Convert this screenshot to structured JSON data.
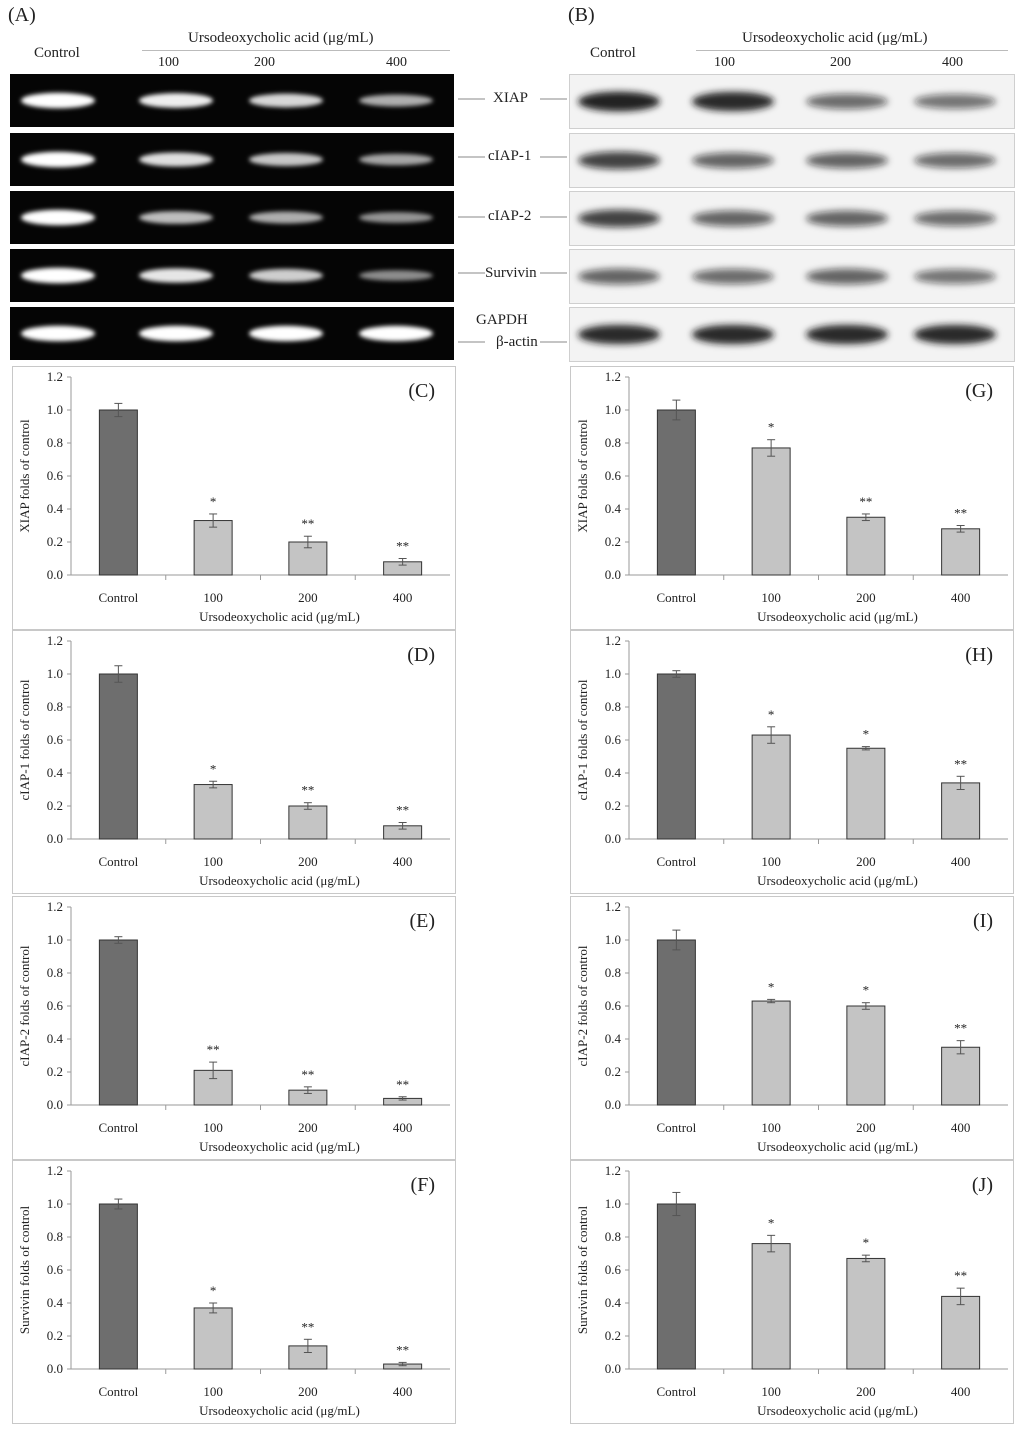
{
  "blots": {
    "A": {
      "letter": "(A)",
      "control_label": "Control",
      "treatment_header": "Ursodeoxycholic acid (μg/mL)",
      "lanes": [
        "100",
        "200",
        "400"
      ],
      "bands": [
        "XIAP",
        "cIAP-1",
        "cIAP-2",
        "Survivin",
        "GAPDH"
      ]
    },
    "B": {
      "letter": "(B)",
      "control_label": "Control",
      "treatment_header": "Ursodeoxycholic acid (μg/mL)",
      "lanes": [
        "100",
        "200",
        "400"
      ],
      "bands": [
        "XIAP",
        "cIAP-1",
        "cIAP-2",
        "Survivin",
        "β-actin"
      ]
    }
  },
  "chart_data": [
    {
      "type": "bar",
      "panel": "(C)",
      "categories": [
        "Control",
        "100",
        "200",
        "400"
      ],
      "values": [
        1.0,
        0.33,
        0.2,
        0.08
      ],
      "errors": [
        0.04,
        0.04,
        0.035,
        0.02
      ],
      "sig": [
        "",
        "*",
        "**",
        "**"
      ],
      "xlabel": "Ursodeoxycholic acid (μg/mL)",
      "ylabel": "XIAP folds of control",
      "ylim": [
        0,
        1.2
      ],
      "yticks": [
        "0.0",
        "0.2",
        "0.4",
        "0.6",
        "0.8",
        "1.0",
        "1.2"
      ]
    },
    {
      "type": "bar",
      "panel": "(G)",
      "categories": [
        "Control",
        "100",
        "200",
        "400"
      ],
      "values": [
        1.0,
        0.77,
        0.35,
        0.28
      ],
      "errors": [
        0.06,
        0.05,
        0.02,
        0.02
      ],
      "sig": [
        "",
        "*",
        "**",
        "**"
      ],
      "xlabel": "Ursodeoxycholic acid (μg/mL)",
      "ylabel": "XIAP folds of control",
      "ylim": [
        0,
        1.2
      ],
      "yticks": [
        "0.0",
        "0.2",
        "0.4",
        "0.6",
        "0.8",
        "1.0",
        "1.2"
      ]
    },
    {
      "type": "bar",
      "panel": "(D)",
      "categories": [
        "Control",
        "100",
        "200",
        "400"
      ],
      "values": [
        1.0,
        0.33,
        0.2,
        0.08
      ],
      "errors": [
        0.05,
        0.02,
        0.02,
        0.02
      ],
      "sig": [
        "",
        "*",
        "**",
        "**"
      ],
      "xlabel": "Ursodeoxycholic acid (μg/mL)",
      "ylabel": "cIAP-1 folds of control",
      "ylim": [
        0,
        1.2
      ],
      "yticks": [
        "0.0",
        "0.2",
        "0.4",
        "0.6",
        "0.8",
        "1.0",
        "1.2"
      ]
    },
    {
      "type": "bar",
      "panel": "(H)",
      "categories": [
        "Control",
        "100",
        "200",
        "400"
      ],
      "values": [
        1.0,
        0.63,
        0.55,
        0.34
      ],
      "errors": [
        0.02,
        0.05,
        0.01,
        0.04
      ],
      "sig": [
        "",
        "*",
        "*",
        "**"
      ],
      "xlabel": "Ursodeoxycholic acid (μg/mL)",
      "ylabel": "cIAP-1 folds of control",
      "ylim": [
        0,
        1.2
      ],
      "yticks": [
        "0.0",
        "0.2",
        "0.4",
        "0.6",
        "0.8",
        "1.0",
        "1.2"
      ]
    },
    {
      "type": "bar",
      "panel": "(E)",
      "categories": [
        "Control",
        "100",
        "200",
        "400"
      ],
      "values": [
        1.0,
        0.21,
        0.09,
        0.04
      ],
      "errors": [
        0.02,
        0.05,
        0.02,
        0.01
      ],
      "sig": [
        "",
        "**",
        "**",
        "**"
      ],
      "xlabel": "Ursodeoxycholic acid (μg/mL)",
      "ylabel": "cIAP-2 folds of control",
      "ylim": [
        0,
        1.2
      ],
      "yticks": [
        "0.0",
        "0.2",
        "0.4",
        "0.6",
        "0.8",
        "1.0",
        "1.2"
      ]
    },
    {
      "type": "bar",
      "panel": "(I)",
      "categories": [
        "Control",
        "100",
        "200",
        "400"
      ],
      "values": [
        1.0,
        0.63,
        0.6,
        0.35
      ],
      "errors": [
        0.06,
        0.01,
        0.02,
        0.04
      ],
      "sig": [
        "",
        "*",
        "*",
        "**"
      ],
      "xlabel": "Ursodeoxycholic acid (μg/mL)",
      "ylabel": "cIAP-2 folds of control",
      "ylim": [
        0,
        1.2
      ],
      "yticks": [
        "0.0",
        "0.2",
        "0.4",
        "0.6",
        "0.8",
        "1.0",
        "1.2"
      ]
    },
    {
      "type": "bar",
      "panel": "(F)",
      "categories": [
        "Control",
        "100",
        "200",
        "400"
      ],
      "values": [
        1.0,
        0.37,
        0.14,
        0.03
      ],
      "errors": [
        0.03,
        0.03,
        0.04,
        0.01
      ],
      "sig": [
        "",
        "*",
        "**",
        "**"
      ],
      "xlabel": "Ursodeoxycholic acid (μg/mL)",
      "ylabel": "Survivin folds of control",
      "ylim": [
        0,
        1.2
      ],
      "yticks": [
        "0.0",
        "0.2",
        "0.4",
        "0.6",
        "0.8",
        "1.0",
        "1.2"
      ]
    },
    {
      "type": "bar",
      "panel": "(J)",
      "categories": [
        "Control",
        "100",
        "200",
        "400"
      ],
      "values": [
        1.0,
        0.76,
        0.67,
        0.44
      ],
      "errors": [
        0.07,
        0.05,
        0.02,
        0.05
      ],
      "sig": [
        "",
        "*",
        "*",
        "**"
      ],
      "xlabel": "Ursodeoxycholic acid (μg/mL)",
      "ylabel": "Survivin folds of control",
      "ylim": [
        0,
        1.2
      ],
      "yticks": [
        "0.0",
        "0.2",
        "0.4",
        "0.6",
        "0.8",
        "1.0",
        "1.2"
      ]
    }
  ],
  "colors": {
    "control_bar": "#6e6e6e",
    "treated_bar": "#c4c4c4",
    "axis": "#9a9a9a",
    "gel_bg": "#050505",
    "blot_bg": "#f3f3f3"
  }
}
